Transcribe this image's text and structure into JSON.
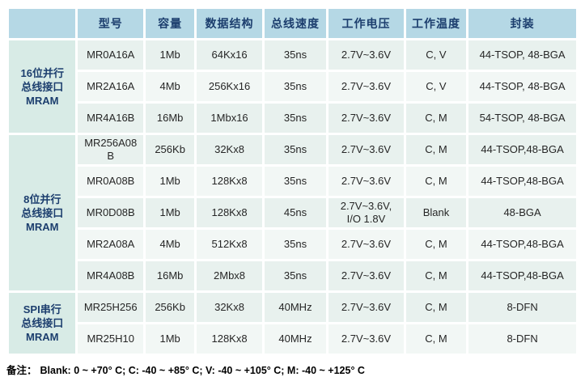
{
  "colors": {
    "header_bg": "#b5d8e5",
    "header_text": "#1c3e6e",
    "group_bg": "#d8ebe6",
    "row_dark": "#e8f1ee",
    "row_light": "#f2f7f5",
    "cell_text": "#262626",
    "note_text": "#000000"
  },
  "table": {
    "columns": [
      {
        "key": "group",
        "label": ""
      },
      {
        "key": "model",
        "label": "型号"
      },
      {
        "key": "capacity",
        "label": "容量"
      },
      {
        "key": "data_structure",
        "label": "数据结构"
      },
      {
        "key": "bus_speed",
        "label": "总线速度"
      },
      {
        "key": "voltage",
        "label": "工作电压"
      },
      {
        "key": "temperature",
        "label": "工作温度"
      },
      {
        "key": "package",
        "label": "封装"
      }
    ],
    "groups": [
      {
        "label": "16位并行\n总线接口\nMRAM",
        "rows": [
          [
            "MR0A16A",
            "1Mb",
            "64Kx16",
            "35ns",
            "2.7V~3.6V",
            "C, V",
            "44-TSOP, 48-BGA"
          ],
          [
            "MR2A16A",
            "4Mb",
            "256Kx16",
            "35ns",
            "2.7V~3.6V",
            "C, V",
            "44-TSOP, 48-BGA"
          ],
          [
            "MR4A16B",
            "16Mb",
            "1Mbx16",
            "35ns",
            "2.7V~3.6V",
            "C, M",
            "54-TSOP, 48-BGA"
          ]
        ]
      },
      {
        "label": "8位并行\n总线接口\nMRAM",
        "rows": [
          [
            "MR256A08B",
            "256Kb",
            "32Kx8",
            "35ns",
            "2.7V~3.6V",
            "C, M",
            "44-TSOP,48-BGA"
          ],
          [
            "MR0A08B",
            "1Mb",
            "128Kx8",
            "35ns",
            "2.7V~3.6V",
            "C, M",
            "44-TSOP,48-BGA"
          ],
          [
            "MR0D08B",
            "1Mb",
            "128Kx8",
            "45ns",
            "2.7V~3.6V,\nI/O 1.8V",
            "Blank",
            "48-BGA"
          ],
          [
            "MR2A08A",
            "4Mb",
            "512Kx8",
            "35ns",
            "2.7V~3.6V",
            "C, M",
            "44-TSOP,48-BGA"
          ],
          [
            "MR4A08B",
            "16Mb",
            "2Mbx8",
            "35ns",
            "2.7V~3.6V",
            "C, M",
            "44-TSOP,48-BGA"
          ]
        ]
      },
      {
        "label": "SPI串行\n总线接口\nMRAM",
        "rows": [
          [
            "MR25H256",
            "256Kb",
            "32Kx8",
            "40MHz",
            "2.7V~3.6V",
            "C, M",
            "8-DFN"
          ],
          [
            "MR25H10",
            "1Mb",
            "128Kx8",
            "40MHz",
            "2.7V~3.6V",
            "C, M",
            "8-DFN"
          ]
        ]
      }
    ]
  },
  "note": {
    "prefix": "备注：",
    "text": "Blank: 0 ~ +70° C; C: -40 ~ +85° C; V: -40 ~ +105° C; M: -40 ~ +125° C"
  }
}
